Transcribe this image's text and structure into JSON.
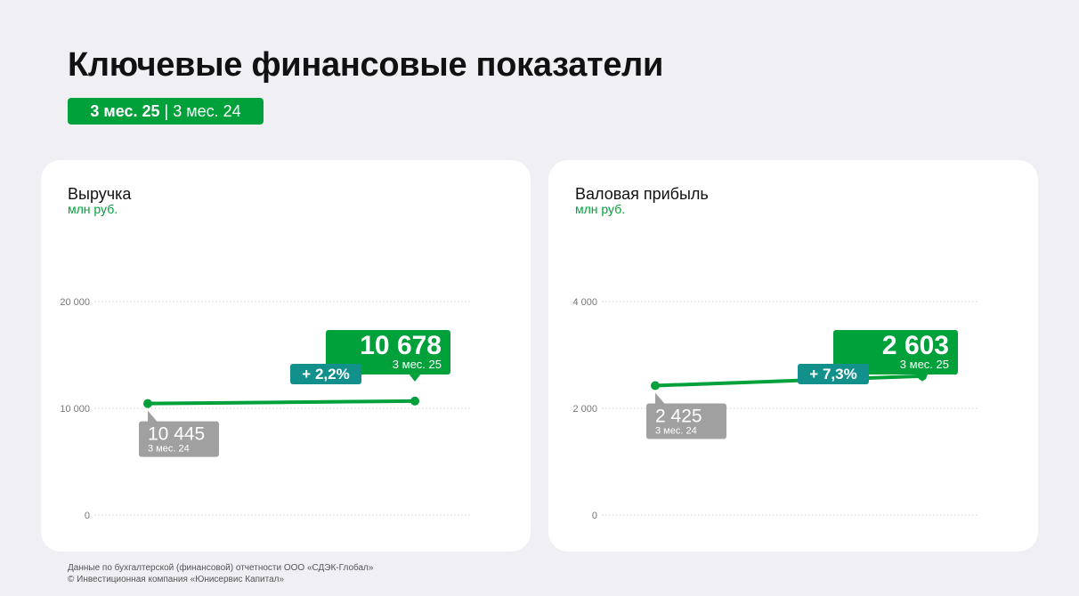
{
  "header": {
    "title": "Ключевые финансовые показатели",
    "period_current": "3 мес. 25",
    "period_separator": " | ",
    "period_previous": "3 мес. 24"
  },
  "colors": {
    "accent": "#00a13a",
    "teal": "#12908c",
    "grey": "#a0a0a0",
    "card_bg": "#ffffff",
    "page_bg": "#efeff4"
  },
  "chart_data": [
    {
      "type": "line",
      "title": "Выручка",
      "ylabel": "млн руб.",
      "ylim": [
        0,
        20000
      ],
      "yticks": [
        0,
        10000,
        20000
      ],
      "ytick_labels": [
        "0",
        "10 000",
        "20 000"
      ],
      "grid": true,
      "points": [
        {
          "value": 10445,
          "label": "10 445",
          "period": "3 мес. 24"
        },
        {
          "value": 10678,
          "label": "10 678",
          "period": "3 мес. 25"
        }
      ],
      "change": "+ 2,2%"
    },
    {
      "type": "line",
      "title": "Валовая прибыль",
      "ylabel": "млн руб.",
      "ylim": [
        0,
        4000
      ],
      "yticks": [
        0,
        2000,
        4000
      ],
      "ytick_labels": [
        "0",
        "2 000",
        "4 000"
      ],
      "grid": true,
      "points": [
        {
          "value": 2425,
          "label": "2 425",
          "period": "3 мес. 24"
        },
        {
          "value": 2603,
          "label": "2 603",
          "period": "3 мес. 25"
        }
      ],
      "change": "+ 7,3%"
    }
  ],
  "footer": {
    "line1": "Данные по бухгалтерской (финансовой) отчетности ООО «СДЭК-Глобал»",
    "line2": "© Инвестиционная компания «Юнисервис Капитал»"
  }
}
